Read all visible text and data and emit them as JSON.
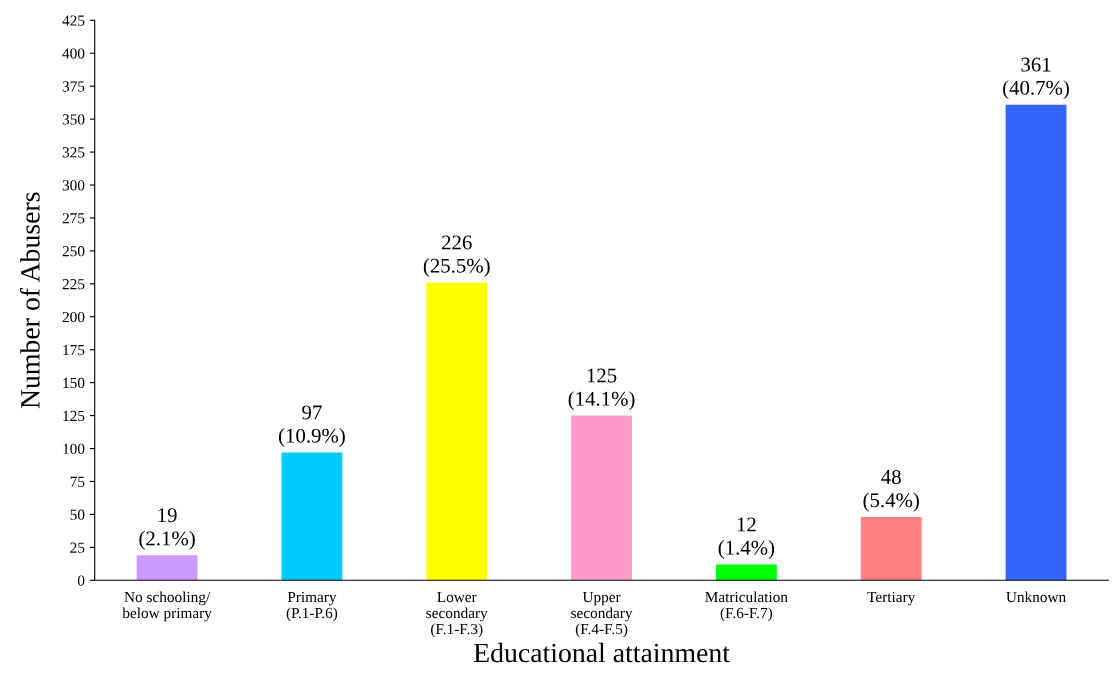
{
  "chart_data": {
    "type": "bar",
    "xlabel": "Educational attainment",
    "ylabel": "Number of Abusers",
    "categories": [
      "No schooling/\nbelow primary",
      "Primary\n(P.1-P.6)",
      "Lower\nsecondary\n(F.1-F.3)",
      "Upper\nsecondary\n(F.4-F.5)",
      "Matriculation\n(F.6-F.7)",
      "Tertiary",
      "Unknown"
    ],
    "values": [
      19,
      97,
      226,
      125,
      12,
      48,
      361
    ],
    "colors": [
      "#cc99ff",
      "#00ccff",
      "#ffff00",
      "#ff99cc",
      "#00ff00",
      "#ff8080",
      "#3366ff"
    ],
    "value_labels": [
      "19\n(2.1%)",
      "97\n(10.9%)",
      "226\n(25.5%)",
      "125\n(14.1%)",
      "12\n(1.4%)",
      "48\n(5.4%)",
      "361\n(40.7%)"
    ],
    "ylim": [
      0,
      425
    ],
    "yticks": [
      0,
      25,
      50,
      75,
      100,
      125,
      150,
      175,
      200,
      225,
      250,
      275,
      300,
      325,
      350,
      375,
      400,
      425
    ],
    "grid": false,
    "legend": false
  }
}
